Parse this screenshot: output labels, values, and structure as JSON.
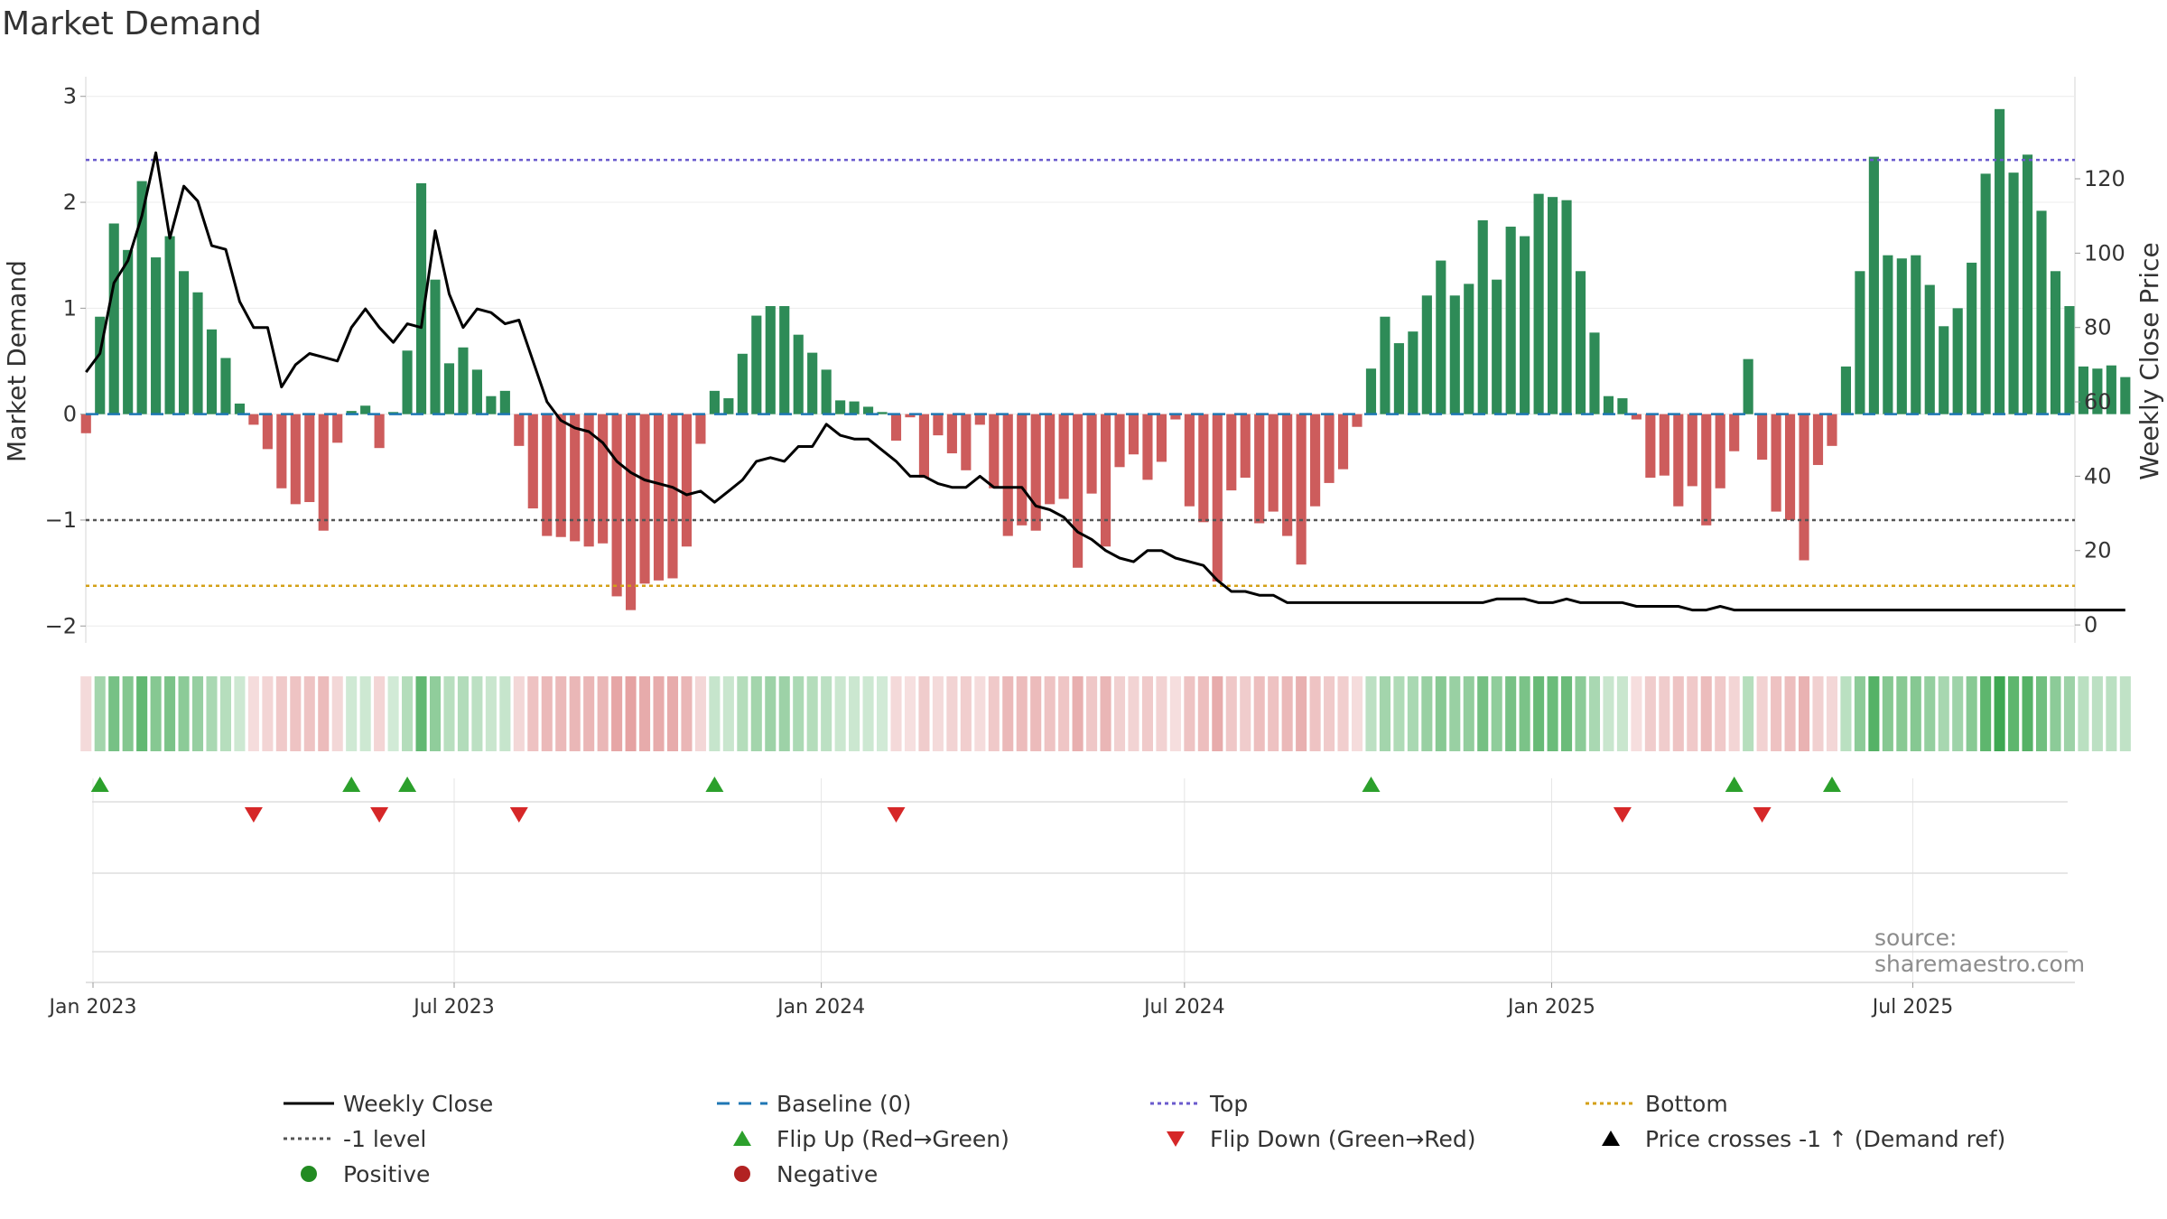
{
  "title": "Market Demand",
  "source": "source: sharemaestro.com",
  "colors": {
    "positive": "#2e8b57",
    "negative": "#cd5c5c",
    "price": "#000000",
    "baseline": "#1f77b4",
    "top": "#6a5acd",
    "minus1": "#555555",
    "bottom": "#d4a017",
    "flip_up": "#2ca02c",
    "flip_down": "#d62728"
  },
  "chart_data": {
    "type": "bar",
    "title": "Market Demand",
    "ylabel_left": "Market Demand",
    "ylabel_right": "Weekly Close Price",
    "ylim_left": [
      -2.1,
      3.1
    ],
    "ylim_right": [
      0,
      130
    ],
    "left_ticks": [
      "3",
      "2",
      "1",
      "0",
      "−1",
      "−2"
    ],
    "left_tick_values": [
      3,
      2,
      1,
      0,
      -1,
      -2
    ],
    "right_ticks": [
      "120",
      "100",
      "80",
      "60",
      "40",
      "20",
      "0"
    ],
    "right_tick_values": [
      120,
      100,
      80,
      60,
      40,
      20,
      0
    ],
    "x_start": "2022-12-25",
    "week_days": 7,
    "x_ticks": [
      {
        "date": "2023-01-01",
        "label": "Jan 2023"
      },
      {
        "date": "2023-07-01",
        "label": "Jul 2023"
      },
      {
        "date": "2024-01-01",
        "label": "Jan 2024"
      },
      {
        "date": "2024-07-01",
        "label": "Jul 2024"
      },
      {
        "date": "2025-01-01",
        "label": "Jan 2025"
      },
      {
        "date": "2025-07-01",
        "label": "Jul 2025"
      }
    ],
    "reference_lines": {
      "top": 2.4,
      "minus1": -1.0,
      "bottom": -1.62,
      "baseline": 0
    },
    "demand": [
      -0.18,
      0.92,
      1.8,
      1.55,
      2.2,
      1.48,
      1.68,
      1.35,
      1.15,
      0.8,
      0.53,
      0.1,
      -0.1,
      -0.33,
      -0.7,
      -0.85,
      -0.83,
      -1.1,
      -0.27,
      0.03,
      0.08,
      -0.32,
      0.02,
      0.6,
      2.18,
      1.27,
      0.48,
      0.63,
      0.42,
      0.17,
      0.22,
      -0.3,
      -0.89,
      -1.15,
      -1.16,
      -1.2,
      -1.25,
      -1.22,
      -1.72,
      -1.85,
      -1.6,
      -1.57,
      -1.55,
      -1.25,
      -0.28,
      0.22,
      0.15,
      0.57,
      0.93,
      1.02,
      1.02,
      0.75,
      0.58,
      0.42,
      0.13,
      0.12,
      0.07,
      0.02,
      -0.25,
      -0.03,
      -0.6,
      -0.2,
      -0.37,
      -0.53,
      -0.1,
      -0.7,
      -1.15,
      -1.05,
      -1.1,
      -0.85,
      -0.8,
      -1.45,
      -0.75,
      -1.25,
      -0.5,
      -0.38,
      -0.62,
      -0.45,
      -0.05,
      -0.87,
      -1.02,
      -1.58,
      -0.72,
      -0.6,
      -1.03,
      -0.92,
      -1.15,
      -1.42,
      -0.87,
      -0.65,
      -0.52,
      -0.12,
      0.43,
      0.92,
      0.67,
      0.78,
      1.12,
      1.45,
      1.12,
      1.23,
      1.83,
      1.27,
      1.77,
      1.68,
      2.08,
      2.05,
      2.02,
      1.35,
      0.77,
      0.17,
      0.15,
      -0.05,
      -0.6,
      -0.58,
      -0.87,
      -0.68,
      -1.05,
      -0.7,
      -0.35,
      0.52,
      -0.43,
      -0.92,
      -1.0,
      -1.38,
      -0.48,
      -0.3,
      0.45,
      1.35,
      2.43,
      1.5,
      1.47,
      1.5,
      1.22,
      0.83,
      1.0,
      1.43,
      2.27,
      2.88,
      2.28,
      2.45,
      1.92,
      1.35,
      1.02,
      0.45,
      0.43,
      0.46,
      0.35
    ],
    "weekly_close": [
      68,
      73,
      92,
      98,
      110,
      127,
      104,
      118,
      114,
      102,
      101,
      87,
      80,
      80,
      64,
      70,
      73,
      72,
      71,
      80,
      85,
      80,
      76,
      81,
      80,
      106,
      89,
      80,
      85,
      84,
      81,
      82,
      71,
      60,
      55,
      53,
      52,
      49,
      44,
      41,
      39,
      38,
      37,
      35,
      36,
      33,
      36,
      39,
      44,
      45,
      44,
      48,
      48,
      54,
      51,
      50,
      50,
      47,
      44,
      40,
      40,
      38,
      37,
      37,
      40,
      37,
      37,
      37,
      32,
      31,
      29,
      25,
      23,
      20,
      18,
      17,
      20,
      20,
      18,
      17,
      16,
      12,
      9,
      9,
      8,
      8,
      6,
      6,
      6,
      6,
      6,
      6,
      6,
      6,
      6,
      6,
      6,
      6,
      6,
      6,
      6,
      7,
      7,
      7,
      6,
      6,
      7,
      6,
      6,
      6,
      6,
      5,
      5,
      5,
      5,
      4,
      4,
      5,
      4,
      4,
      4,
      4,
      4,
      4,
      4,
      4,
      4,
      4,
      4,
      4,
      4,
      4,
      4,
      4,
      4,
      4,
      4,
      4,
      4,
      4,
      4,
      4,
      4,
      4,
      4,
      4,
      4
    ],
    "flip_up_weeks": [
      1,
      19,
      23,
      45,
      92,
      118,
      125
    ],
    "flip_down_weeks": [
      12,
      21,
      31,
      58,
      110,
      120
    ]
  },
  "legend": [
    {
      "key": "weekly_close",
      "label": "Weekly Close",
      "symbol": "line"
    },
    {
      "key": "baseline",
      "label": "Baseline (0)",
      "symbol": "dash"
    },
    {
      "key": "top",
      "label": "Top",
      "symbol": "dot"
    },
    {
      "key": "bottom",
      "label": "Bottom",
      "symbol": "dot"
    },
    {
      "key": "minus1",
      "label": "-1 level",
      "symbol": "dot"
    },
    {
      "key": "flip_up",
      "label": "Flip Up (Red→Green)",
      "symbol": "tri-up"
    },
    {
      "key": "flip_down",
      "label": "Flip Down (Green→Red)",
      "symbol": "tri-down"
    },
    {
      "key": "price_cross",
      "label": "Price crosses -1 ↑ (Demand ref)",
      "symbol": "tri-up-black"
    },
    {
      "key": "positive",
      "label": "Positive",
      "symbol": "circle"
    },
    {
      "key": "negative",
      "label": "Negative",
      "symbol": "circle"
    }
  ]
}
